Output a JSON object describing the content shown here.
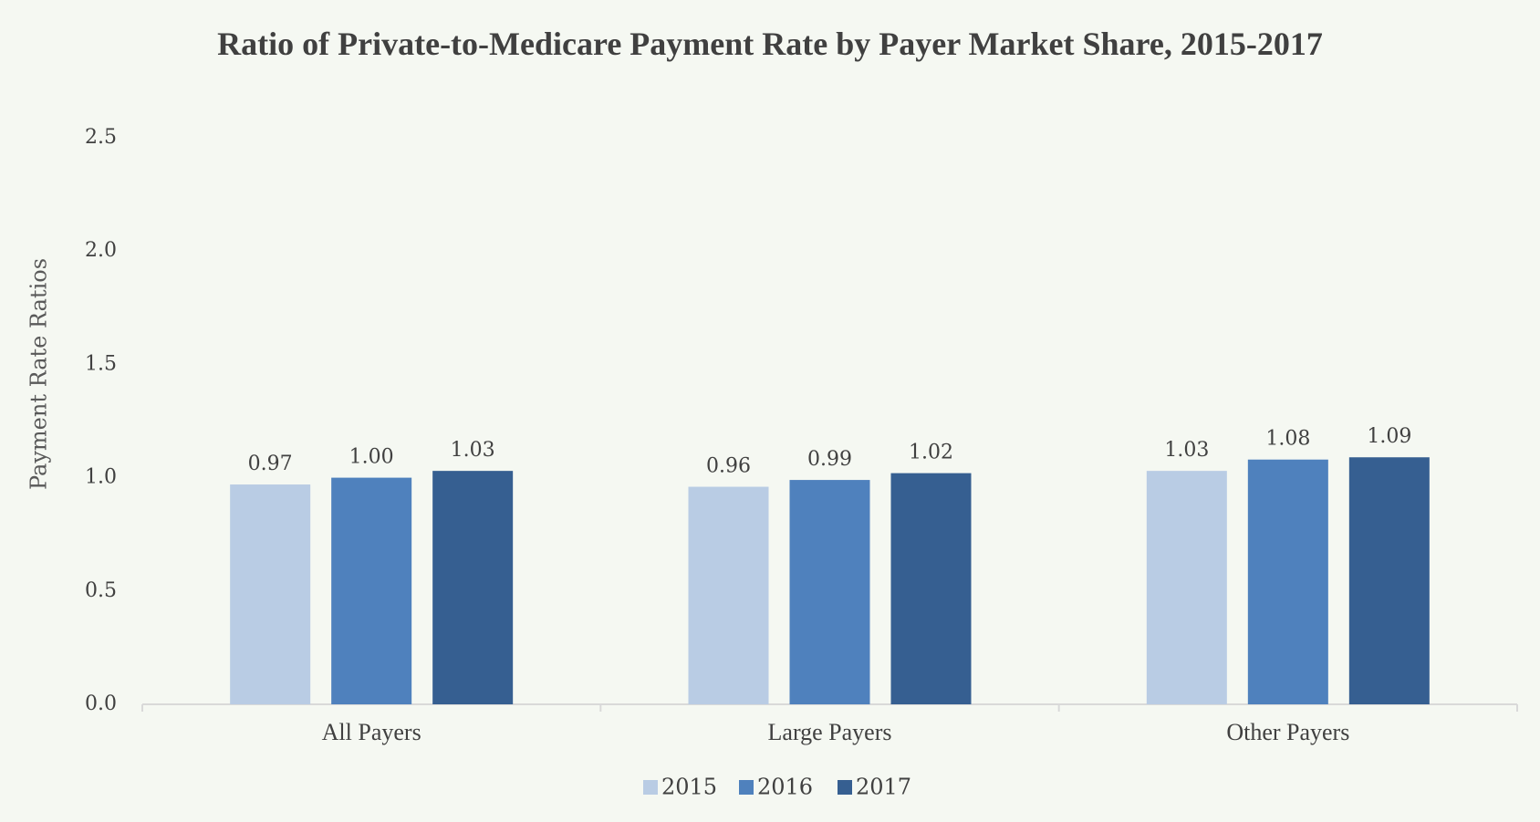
{
  "chart_data": {
    "type": "bar",
    "title": "Ratio of Private-to-Medicare Payment Rate by Payer Market Share, 2015-2017",
    "y_label": "Payment Rate Ratios",
    "categories": [
      "All Payers",
      "Large Payers",
      "Other Payers"
    ],
    "series": [
      {
        "name": "2015",
        "color": "#b9cce4",
        "values": [
          0.97,
          0.96,
          1.03
        ],
        "value_labels": [
          "0.97",
          "0.96",
          "1.03"
        ]
      },
      {
        "name": "2016",
        "color": "#4f81bd",
        "values": [
          1.0,
          0.99,
          1.08
        ],
        "value_labels": [
          "1.00",
          "0.99",
          "1.08"
        ]
      },
      {
        "name": "2017",
        "color": "#365f91",
        "values": [
          1.03,
          1.02,
          1.09
        ],
        "value_labels": [
          "1.03",
          "1.02",
          "1.09"
        ]
      }
    ],
    "ylim": [
      0,
      2.5
    ],
    "yticks": [
      {
        "value": 0,
        "label": "0.0"
      },
      {
        "value": 0.5,
        "label": "0.5"
      },
      {
        "value": 1,
        "label": "1.0"
      },
      {
        "value": 1.5,
        "label": "1.5"
      },
      {
        "value": 2,
        "label": "2.0"
      },
      {
        "value": 2.5,
        "label": "2.5"
      }
    ],
    "grid": false,
    "legend": "bottom"
  }
}
